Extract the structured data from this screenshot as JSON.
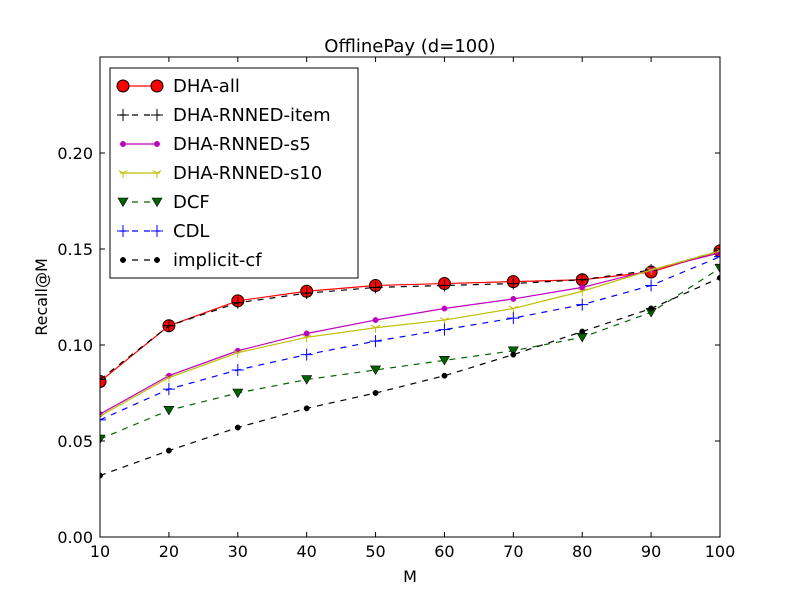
{
  "chart_data": {
    "type": "line",
    "title": "OfflinePay (d=100)",
    "xlabel": "M",
    "ylabel": "Recall@M",
    "xlim": [
      10,
      100
    ],
    "ylim": [
      0,
      0.25
    ],
    "xticks": [
      10,
      20,
      30,
      40,
      50,
      60,
      70,
      80,
      90,
      100
    ],
    "xtick_labels": [
      "10",
      "20",
      "30",
      "40",
      "50",
      "60",
      "70",
      "80",
      "90",
      "100"
    ],
    "yticks": [
      0,
      0.05,
      0.1,
      0.15,
      0.2
    ],
    "ytick_labels": [
      "0.00",
      "0.05",
      "0.10",
      "0.15",
      "0.20"
    ],
    "grid": false,
    "legend_position": "top-left",
    "x": [
      10,
      20,
      30,
      40,
      50,
      60,
      70,
      80,
      90,
      100
    ],
    "series": [
      {
        "name": "DHA-all",
        "color": "#ff0000",
        "marker": "circle-large",
        "linestyle": "solid",
        "values": [
          0.081,
          0.11,
          0.123,
          0.128,
          0.131,
          0.132,
          0.133,
          0.134,
          0.138,
          0.149
        ]
      },
      {
        "name": "DHA-RNNED-item",
        "color": "#000000",
        "marker": "plus",
        "linestyle": "dashed",
        "values": [
          0.082,
          0.11,
          0.122,
          0.127,
          0.13,
          0.131,
          0.132,
          0.134,
          0.139,
          0.149
        ]
      },
      {
        "name": "DHA-RNNED-s5",
        "color": "#bf00bf",
        "marker": "dot",
        "linestyle": "solid",
        "values": [
          0.064,
          0.084,
          0.097,
          0.106,
          0.113,
          0.119,
          0.124,
          0.13,
          0.139,
          0.148
        ]
      },
      {
        "name": "DHA-RNNED-s10",
        "color": "#bfbf00",
        "marker": "tri",
        "linestyle": "solid",
        "values": [
          0.063,
          0.083,
          0.096,
          0.104,
          0.109,
          0.113,
          0.119,
          0.128,
          0.139,
          0.149
        ]
      },
      {
        "name": "DCF",
        "color": "#006400",
        "marker": "triangle-down",
        "linestyle": "dashed",
        "values": [
          0.051,
          0.066,
          0.075,
          0.082,
          0.087,
          0.092,
          0.097,
          0.104,
          0.117,
          0.14
        ]
      },
      {
        "name": "CDL",
        "color": "#0000ff",
        "marker": "plus",
        "linestyle": "dashed",
        "values": [
          0.061,
          0.077,
          0.087,
          0.095,
          0.102,
          0.108,
          0.114,
          0.121,
          0.131,
          0.146
        ]
      },
      {
        "name": "implicit-cf",
        "color": "#000000",
        "marker": "dot",
        "linestyle": "dashed",
        "values": [
          0.032,
          0.045,
          0.057,
          0.067,
          0.075,
          0.084,
          0.095,
          0.107,
          0.119,
          0.135
        ]
      }
    ]
  }
}
